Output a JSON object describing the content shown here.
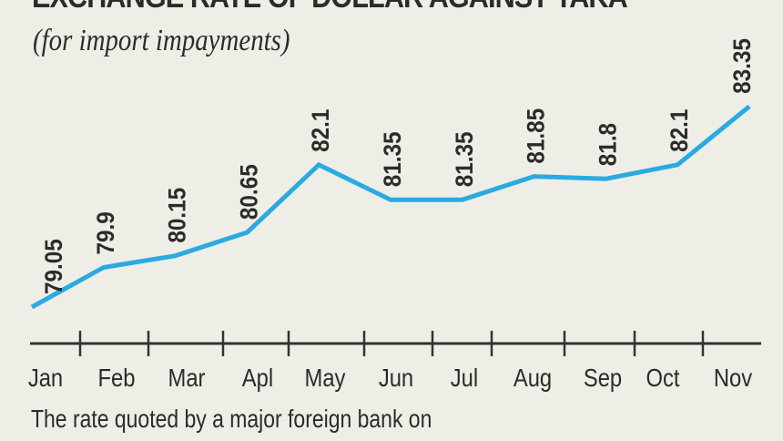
{
  "chart_data": {
    "type": "line",
    "title": "EXCHANGE RATE OF DOLLAR AGAINST TAKA",
    "subtitle": "(for import impayments)",
    "categories": [
      "Jan",
      "Feb",
      "Mar",
      "Apl",
      "May",
      "Jun",
      "Jul",
      "Aug",
      "Sep",
      "Oct",
      "Nov"
    ],
    "values": [
      79.05,
      79.9,
      80.15,
      80.65,
      82.1,
      81.35,
      81.35,
      81.85,
      81.8,
      82.1,
      83.35
    ],
    "data_labels": [
      "79.05",
      "79.9",
      "80.15",
      "80.65",
      "82.1",
      "81.35",
      "81.35",
      "81.85",
      "81.8",
      "82.1",
      "83.35"
    ],
    "footnote": "The rate quoted by a major foreign bank on",
    "grid": false,
    "line_color": "#2aaae2",
    "axis_color": "#333333"
  }
}
